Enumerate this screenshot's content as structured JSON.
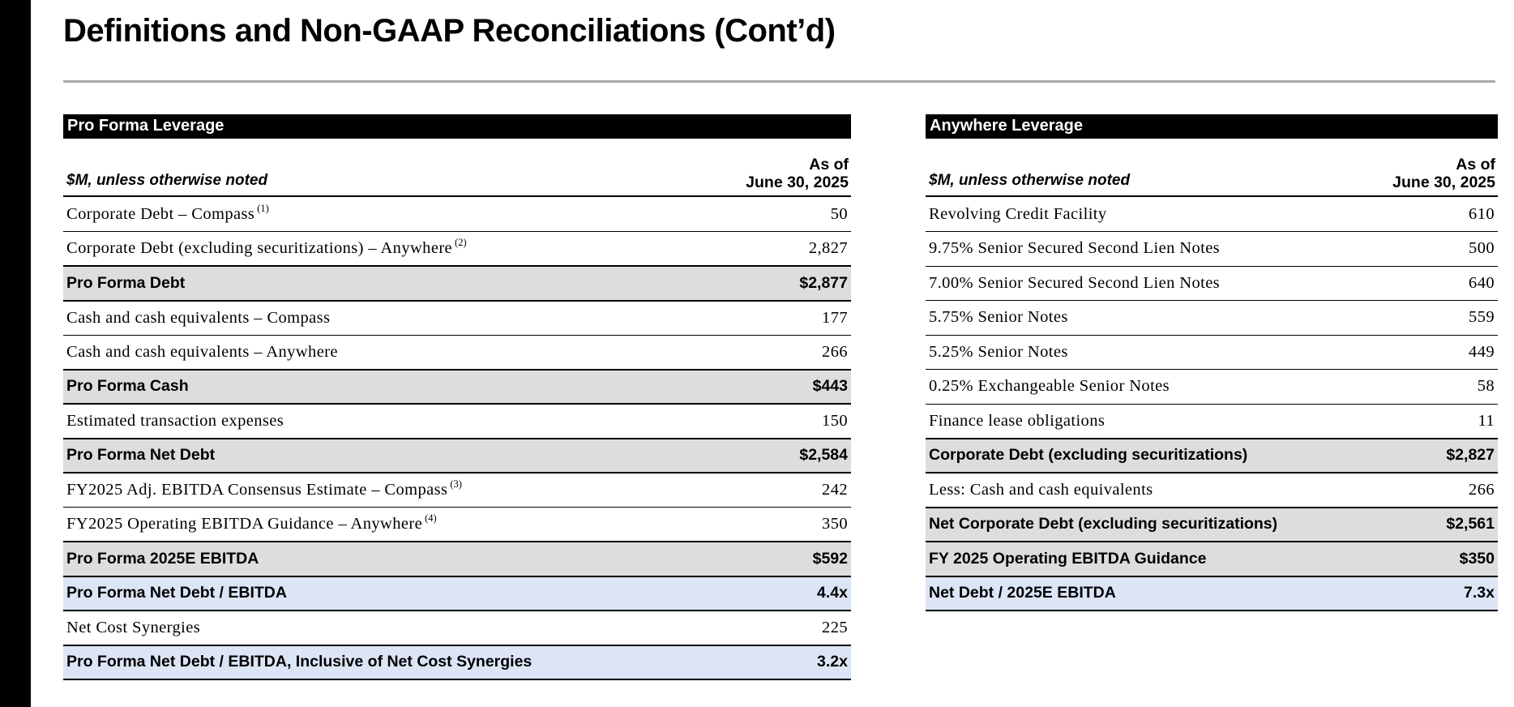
{
  "page": {
    "title": "Definitions and Non-GAAP Reconciliations (Cont’d)"
  },
  "colors": {
    "header_bar_bg": "#000000",
    "header_bar_text": "#ffffff",
    "subtotal_row_bg": "#dddddd",
    "ratio_row_bg": "#dbe5f5",
    "title_rule": "#a9a9a9"
  },
  "tables": {
    "left": {
      "title": "Pro Forma Leverage",
      "unit_note": "$M, unless otherwise noted",
      "as_of_line1": "As of",
      "as_of_line2": "June 30, 2025",
      "rows": [
        {
          "label": "Corporate Debt – Compass",
          "sup": "(1)",
          "value": "50",
          "style": "normal"
        },
        {
          "label": "Corporate Debt (excluding securitizations) – Anywhere",
          "sup": "(2)",
          "value": "2,827",
          "style": "normal"
        },
        {
          "label": "Pro Forma Debt",
          "value": "$2,877",
          "style": "total"
        },
        {
          "label": "Cash and cash equivalents – Compass",
          "value": "177",
          "style": "normal"
        },
        {
          "label": "Cash and cash equivalents – Anywhere",
          "value": "266",
          "style": "normal"
        },
        {
          "label": "Pro Forma Cash",
          "value": "$443",
          "style": "total"
        },
        {
          "label": "Estimated transaction expenses",
          "value": "150",
          "style": "normal"
        },
        {
          "label": "Pro Forma Net Debt",
          "value": "$2,584",
          "style": "total"
        },
        {
          "label": "FY2025 Adj. EBITDA Consensus Estimate – Compass",
          "sup": "(3)",
          "value": "242",
          "style": "normal"
        },
        {
          "label": "FY2025 Operating EBITDA Guidance – Anywhere",
          "sup": "(4)",
          "value": "350",
          "style": "normal"
        },
        {
          "label": "Pro Forma 2025E EBITDA",
          "value": "$592",
          "style": "total"
        },
        {
          "label": "Pro Forma Net Debt / EBITDA",
          "value": "4.4x",
          "style": "ratio"
        },
        {
          "label": "Net Cost Synergies",
          "value": "225",
          "style": "normal"
        },
        {
          "label": "Pro Forma Net Debt / EBITDA, Inclusive of Net Cost Synergies",
          "value": "3.2x",
          "style": "ratio"
        }
      ]
    },
    "right": {
      "title": "Anywhere Leverage",
      "unit_note": "$M, unless otherwise noted",
      "as_of_line1": "As of",
      "as_of_line2": "June 30, 2025",
      "rows": [
        {
          "label": "Revolving Credit Facility",
          "value": "610",
          "style": "normal"
        },
        {
          "label": "9.75% Senior Secured Second Lien Notes",
          "value": "500",
          "style": "normal"
        },
        {
          "label": "7.00% Senior Secured Second Lien Notes",
          "value": "640",
          "style": "normal"
        },
        {
          "label": "5.75% Senior Notes",
          "value": "559",
          "style": "normal"
        },
        {
          "label": "5.25% Senior Notes",
          "value": "449",
          "style": "normal"
        },
        {
          "label": "0.25% Exchangeable Senior Notes",
          "value": "58",
          "style": "normal"
        },
        {
          "label": "Finance lease obligations",
          "value": "11",
          "style": "normal"
        },
        {
          "label": "Corporate Debt (excluding securitizations)",
          "value": "$2,827",
          "style": "total"
        },
        {
          "label": "Less: Cash and cash equivalents",
          "value": "266",
          "style": "normal"
        },
        {
          "label": "Net Corporate Debt (excluding securitizations)",
          "value": "$2,561",
          "style": "total"
        },
        {
          "label": "FY 2025 Operating EBITDA Guidance",
          "value": "$350",
          "style": "total"
        },
        {
          "label": "Net Debt / 2025E EBITDA",
          "value": "7.3x",
          "style": "ratio"
        }
      ]
    }
  }
}
